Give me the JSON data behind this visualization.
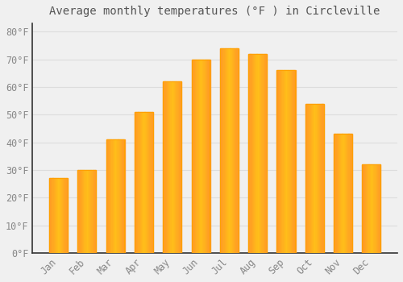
{
  "title": "Average monthly temperatures (°F ) in Circleville",
  "months": [
    "Jan",
    "Feb",
    "Mar",
    "Apr",
    "May",
    "Jun",
    "Jul",
    "Aug",
    "Sep",
    "Oct",
    "Nov",
    "Dec"
  ],
  "values": [
    27,
    30,
    41,
    51,
    62,
    70,
    74,
    72,
    66,
    54,
    43,
    32
  ],
  "bar_color_face": "#FFB830",
  "bar_color_edge": "#FFA000",
  "background_color": "#F0F0F0",
  "grid_color": "#DDDDDD",
  "spine_color": "#333333",
  "ylim": [
    0,
    83
  ],
  "yticks": [
    0,
    10,
    20,
    30,
    40,
    50,
    60,
    70,
    80
  ],
  "title_fontsize": 10,
  "tick_fontsize": 8.5,
  "tick_label_color": "#888888",
  "title_color": "#555555",
  "bar_width": 0.65
}
